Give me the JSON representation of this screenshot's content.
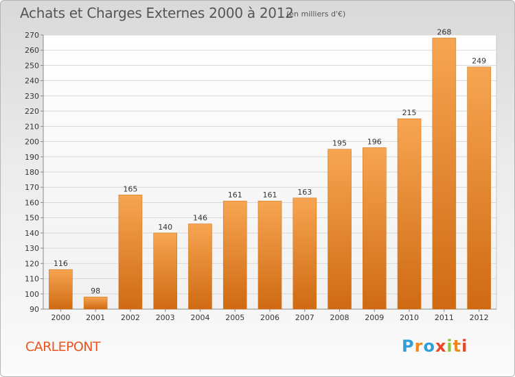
{
  "header": {
    "title": "Achats et Charges Externes 2000 à 2012",
    "unit": "(en milliers d'€)"
  },
  "footer": {
    "commune": "CARLEPONT",
    "logo_text": "Proxiti",
    "logo_colors": [
      "#2e9fd8",
      "#f08a1c",
      "#2e9fd8",
      "#e8452a",
      "#8cc63f",
      "#f08a1c",
      "#e8452a"
    ]
  },
  "chart_data": {
    "type": "bar",
    "title": "Achats et Charges Externes 2000 à 2012",
    "xlabel": "",
    "ylabel": "",
    "categories": [
      "2000",
      "2001",
      "2002",
      "2003",
      "2004",
      "2005",
      "2006",
      "2007",
      "2008",
      "2009",
      "2010",
      "2011",
      "2012"
    ],
    "values": [
      116,
      98,
      165,
      140,
      146,
      161,
      161,
      163,
      195,
      196,
      215,
      268,
      249
    ],
    "ylim": [
      90,
      270
    ],
    "yticks": [
      90,
      100,
      110,
      120,
      130,
      140,
      150,
      160,
      170,
      180,
      190,
      200,
      210,
      220,
      230,
      240,
      250,
      260,
      270
    ],
    "grid": true,
    "bar_color_top": "#f7a552",
    "bar_color_bottom": "#cf6a13"
  }
}
